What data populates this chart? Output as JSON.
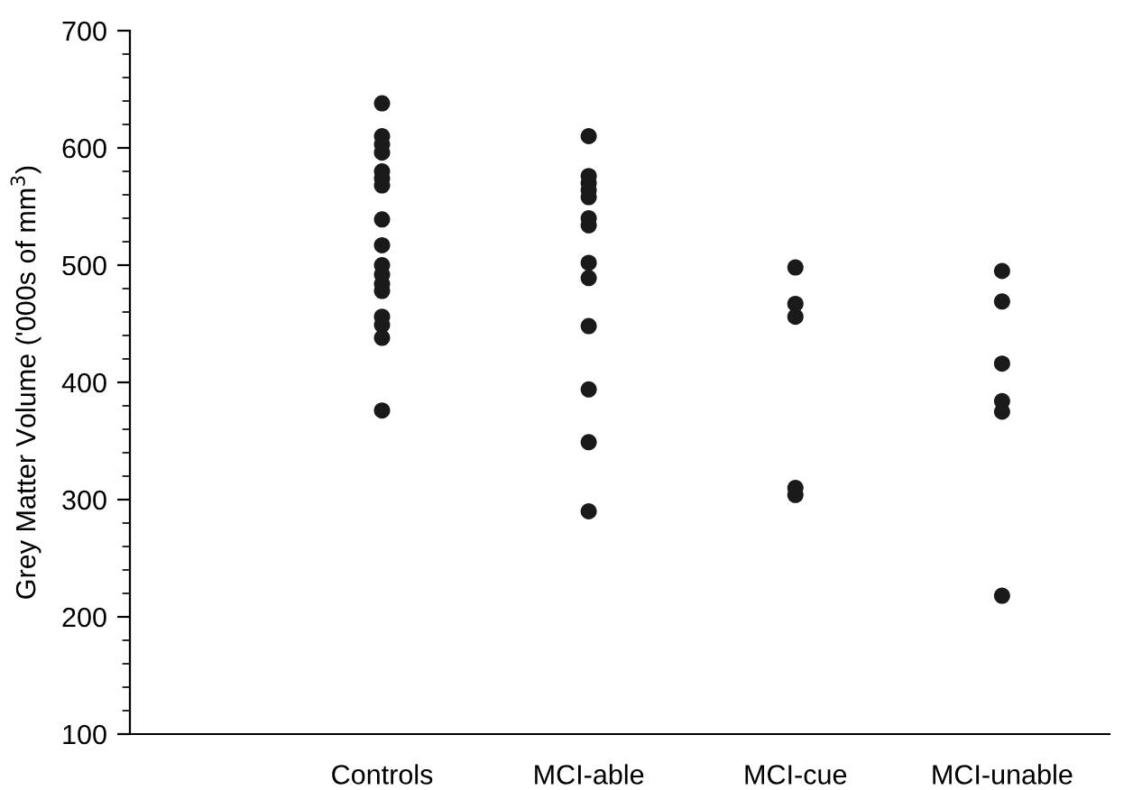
{
  "chart_data": {
    "type": "scatter",
    "ylabel": "Grey Matter Volume ('000s of mm$^{3}$)",
    "categories": [
      "Controls",
      "MCI-able",
      "MCI-cue",
      "MCI-unable"
    ],
    "series": [
      {
        "color": "#1a1a1a",
        "x": [
          "Controls",
          "Controls",
          "Controls",
          "Controls",
          "Controls",
          "Controls",
          "Controls",
          "Controls",
          "Controls",
          "Controls",
          "Controls",
          "Controls",
          "Controls",
          "Controls",
          "Controls",
          "Controls",
          "Controls"
        ],
        "values": [
          638,
          610,
          603,
          596,
          580,
          574,
          568,
          539,
          517,
          500,
          492,
          484,
          478,
          456,
          449,
          438,
          376
        ]
      },
      {
        "color": "#1a1a1a",
        "x": [
          "MCI-able",
          "MCI-able",
          "MCI-able",
          "MCI-able",
          "MCI-able",
          "MCI-able",
          "MCI-able",
          "MCI-able",
          "MCI-able",
          "MCI-able",
          "MCI-able",
          "MCI-able",
          "MCI-able"
        ],
        "values": [
          610,
          576,
          570,
          564,
          558,
          540,
          534,
          502,
          489,
          448,
          394,
          349,
          290
        ]
      },
      {
        "color": "#1a1a1a",
        "x": [
          "MCI-cue",
          "MCI-cue",
          "MCI-cue",
          "MCI-cue",
          "MCI-cue"
        ],
        "values": [
          498,
          467,
          456,
          310,
          304
        ]
      },
      {
        "color": "#1a1a1a",
        "x": [
          "MCI-unable",
          "MCI-unable",
          "MCI-unable",
          "MCI-unable",
          "MCI-unable",
          "MCI-unable"
        ],
        "values": [
          495,
          469,
          416,
          384,
          375,
          218
        ]
      }
    ],
    "ylim": [
      100,
      700
    ],
    "yticks": [
      100,
      200,
      300,
      400,
      500,
      600,
      700
    ],
    "grid": false,
    "marker": "circle",
    "legend": false
  }
}
